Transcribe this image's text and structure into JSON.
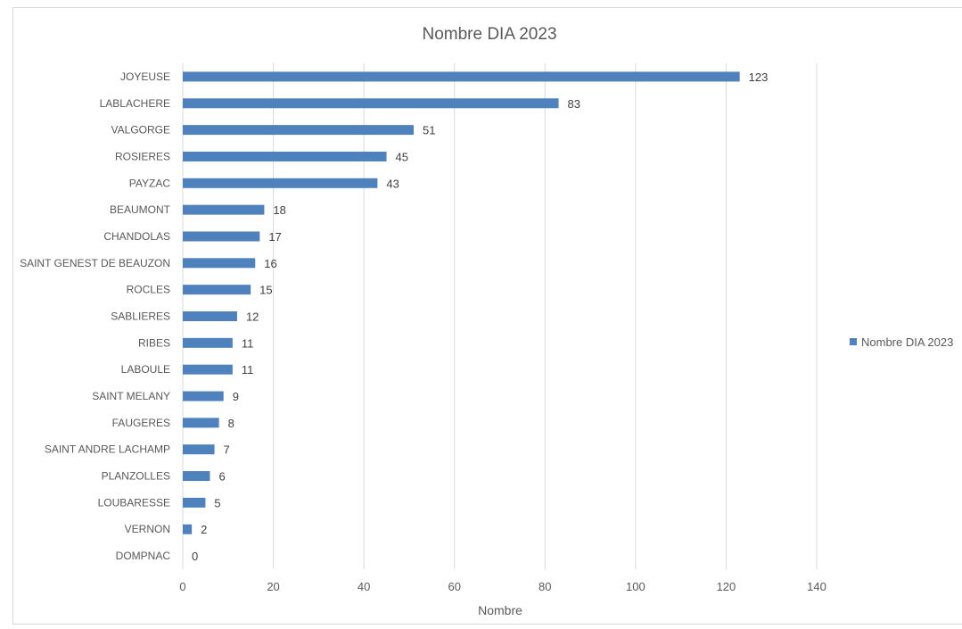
{
  "chart_data": {
    "type": "bar",
    "orientation": "horizontal",
    "title": "Nombre DIA 2023",
    "xlabel": "Nombre",
    "ylabel": "",
    "xlim": [
      0,
      140
    ],
    "xticks": [
      0,
      20,
      40,
      60,
      80,
      100,
      120,
      140
    ],
    "grid": true,
    "legend_position": "right",
    "bar_color": "#4f81bd",
    "categories": [
      "JOYEUSE",
      "LABLACHERE",
      "VALGORGE",
      "ROSIERES",
      "PAYZAC",
      "BEAUMONT",
      "CHANDOLAS",
      "SAINT GENEST DE BEAUZON",
      "ROCLES",
      "SABLIERES",
      "RIBES",
      "LABOULE",
      "SAINT MELANY",
      "FAUGERES",
      "SAINT ANDRE LACHAMP",
      "PLANZOLLES",
      "LOUBARESSE",
      "VERNON",
      "DOMPNAC"
    ],
    "series": [
      {
        "name": "Nombre DIA 2023",
        "values": [
          123,
          83,
          51,
          45,
          43,
          18,
          17,
          16,
          15,
          12,
          11,
          11,
          9,
          8,
          7,
          6,
          5,
          2,
          0
        ]
      }
    ]
  }
}
